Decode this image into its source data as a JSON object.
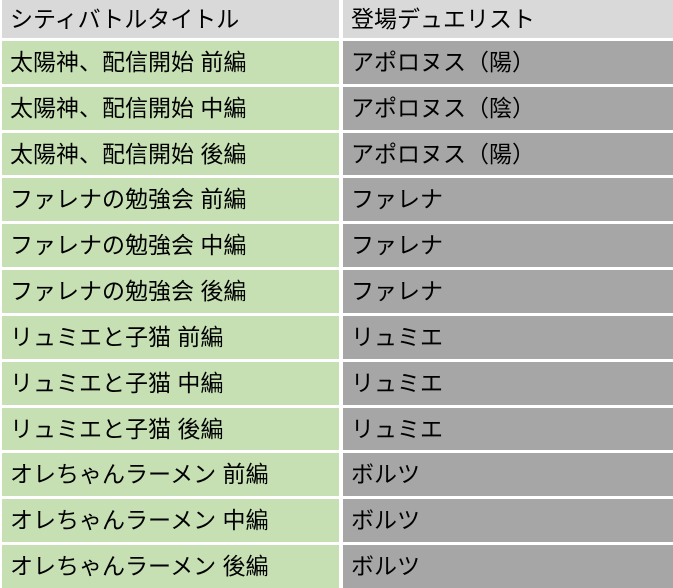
{
  "table": {
    "headers": [
      "シティバトルタイトル",
      "登場デュエリスト"
    ],
    "rows": [
      {
        "title": "太陽神、配信開始 前編",
        "duelist": "アポロヌス（陽）"
      },
      {
        "title": "太陽神、配信開始 中編",
        "duelist": "アポロヌス（陰）"
      },
      {
        "title": "太陽神、配信開始 後編",
        "duelist": "アポロヌス（陽）"
      },
      {
        "title": "ファレナの勉強会 前編",
        "duelist": "ファレナ"
      },
      {
        "title": "ファレナの勉強会 中編",
        "duelist": "ファレナ"
      },
      {
        "title": "ファレナの勉強会 後編",
        "duelist": "ファレナ"
      },
      {
        "title": "リュミエと子猫 前編",
        "duelist": "リュミエ"
      },
      {
        "title": "リュミエと子猫 中編",
        "duelist": "リュミエ"
      },
      {
        "title": "リュミエと子猫 後編",
        "duelist": "リュミエ"
      },
      {
        "title": "オレちゃんラーメン 前編",
        "duelist": "ボルツ"
      },
      {
        "title": "オレちゃんラーメン 中編",
        "duelist": "ボルツ"
      },
      {
        "title": "オレちゃんラーメン 後編",
        "duelist": "ボルツ"
      }
    ],
    "colors": {
      "header_bg": "#d9d9d9",
      "title_cell_bg": "#c6e0b4",
      "duelist_cell_bg": "#a6a6a6",
      "divider": "#ffffff",
      "text": "#000000"
    }
  }
}
